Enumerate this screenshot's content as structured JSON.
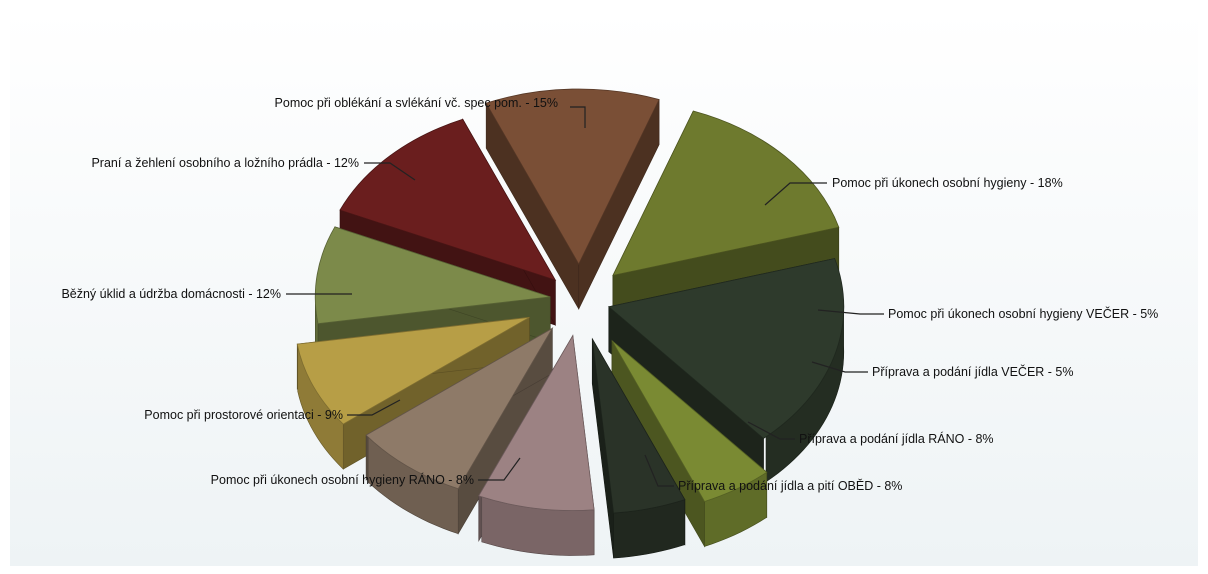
{
  "chart_data": {
    "type": "pie",
    "title": "",
    "exploded": true,
    "three_d": true,
    "slices": [
      {
        "label": "Pomoc při oblékání a svlékání vč. spec pom. - 15%",
        "value": 15,
        "color": "#6e7a2e"
      },
      {
        "label": "Pomoc při úkonech osobní hygieny  - 18%",
        "value": 18,
        "color": "#2e3a2c"
      },
      {
        "label": "Pomoc při úkonech osobní hygieny VEČER - 5%",
        "value": 5,
        "color": "#7a8a33"
      },
      {
        "label": "Příprava a podání jídla VEČER - 5%",
        "value": 5,
        "color": "#2a3328"
      },
      {
        "label": "Příprava a podání jídla RÁNO - 8%",
        "value": 8,
        "color": "#9c8283"
      },
      {
        "label": "Příprava a podání jídla a pití OBĚD - 8%",
        "value": 8,
        "color": "#8e7a68"
      },
      {
        "label": "Pomoc při úkonech osobní hygieny RÁNO - 8%",
        "value": 8,
        "color": "#b79e46"
      },
      {
        "label": "Pomoc při prostorové  orientaci - 9%",
        "value": 9,
        "color": "#7c8a4a"
      },
      {
        "label": "Běžný úklid a údržba domácnosti - 12%",
        "value": 12,
        "color": "#6a1e1e"
      },
      {
        "label": "Praní a žehlení osobního a ložního prádla - 12%",
        "value": 12,
        "color": "#7a4f36"
      }
    ]
  }
}
